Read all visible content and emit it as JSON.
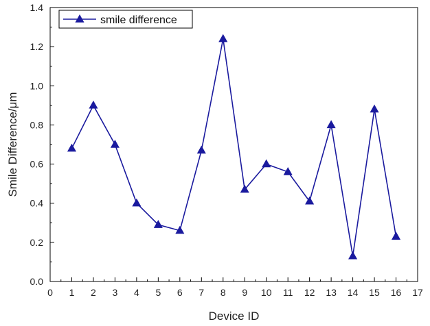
{
  "chart_data": {
    "type": "line",
    "title": "",
    "xlabel": "Device ID",
    "ylabel": "Smile Difference/μm",
    "xlim": [
      0,
      17
    ],
    "ylim": [
      0,
      1.4
    ],
    "x_ticks": [
      "0",
      "1",
      "2",
      "3",
      "4",
      "5",
      "6",
      "7",
      "8",
      "9",
      "10",
      "11",
      "12",
      "13",
      "14",
      "15",
      "16",
      "17"
    ],
    "y_ticks": [
      "0.0",
      "0.2",
      "0.4",
      "0.6",
      "0.8",
      "1.0",
      "1.2",
      "1.4"
    ],
    "grid": false,
    "legend_position": "top-left",
    "series": [
      {
        "name": "smile difference",
        "color": "#1a1a9e",
        "marker": "triangle",
        "x": [
          1,
          2,
          3,
          4,
          5,
          6,
          7,
          8,
          9,
          10,
          11,
          12,
          13,
          14,
          15,
          16
        ],
        "y": [
          0.68,
          0.9,
          0.7,
          0.4,
          0.29,
          0.26,
          0.67,
          1.24,
          0.47,
          0.6,
          0.56,
          0.41,
          0.8,
          0.13,
          0.88,
          0.23
        ]
      }
    ]
  }
}
